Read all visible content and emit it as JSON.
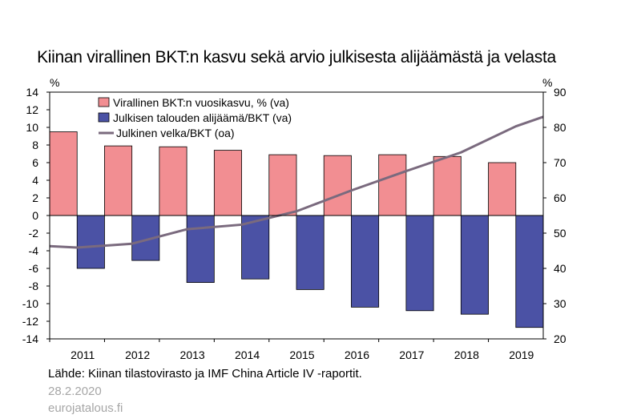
{
  "chart_data": {
    "type": "bar+line",
    "title": "Kiinan virallinen BKT:n kasvu sekä arvio julkisesta alijäämästä ja velasta",
    "categories": [
      "2011",
      "2012",
      "2013",
      "2014",
      "2015",
      "2016",
      "2017",
      "2018",
      "2019"
    ],
    "left_unit": "%",
    "right_unit": "%",
    "left_axis": {
      "min": -14,
      "max": 14,
      "step": 2
    },
    "right_axis": {
      "min": 20,
      "max": 90,
      "step": 10
    },
    "series": [
      {
        "name": "Virallinen BKT:n vuosikasvu, % (va)",
        "axis": "left",
        "kind": "bar",
        "color": "#f28e92",
        "values": [
          9.5,
          7.9,
          7.8,
          7.4,
          6.9,
          6.8,
          6.9,
          6.7,
          6.0
        ]
      },
      {
        "name": "Julkisen talouden alijäämä/BKT (va)",
        "axis": "left",
        "kind": "bar",
        "color": "#4b52a5",
        "values": [
          -6.0,
          -5.1,
          -7.6,
          -7.2,
          -8.4,
          -10.4,
          -10.8,
          -11.2,
          -12.7
        ]
      },
      {
        "name": "Julkinen velka/BKT (oa)",
        "axis": "right",
        "kind": "line",
        "color": "#7a6a7e",
        "points": [
          [
            2010.5,
            46.3
          ],
          [
            2011,
            45.9
          ],
          [
            2012,
            47.0
          ],
          [
            2013,
            51.1
          ],
          [
            2014,
            52.4
          ],
          [
            2015,
            56.2
          ],
          [
            2016,
            62.1
          ],
          [
            2017,
            67.6
          ],
          [
            2018,
            72.9
          ],
          [
            2019,
            80.3
          ],
          [
            2019.5,
            83.0
          ]
        ]
      }
    ]
  },
  "footer": {
    "source": "Lähde: Kiinan tilastovirasto ja IMF China Article IV -raportit.",
    "date": "28.2.2020",
    "site": "eurojatalous.fi"
  }
}
